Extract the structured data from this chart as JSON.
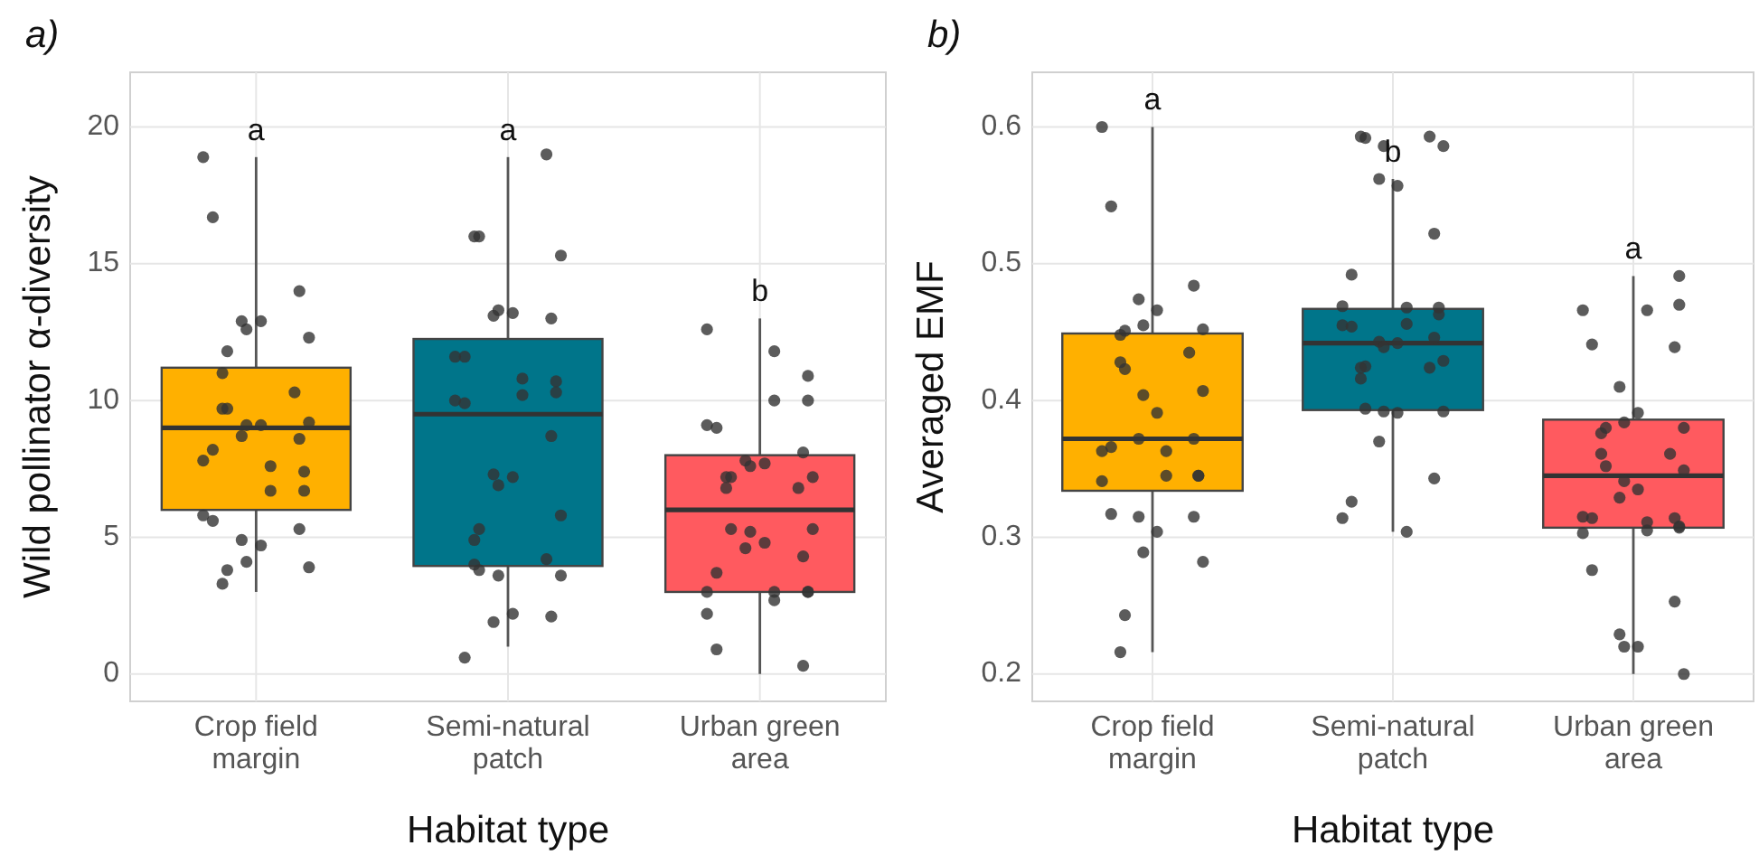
{
  "chart_data": [
    {
      "type": "box",
      "title": "a)",
      "xlabel": "Habitat type",
      "ylabel": "Wild pollinator α-diversity",
      "categories": [
        "Crop field\nmargin",
        "Semi-natural\npatch",
        "Urban green\narea"
      ],
      "colors": [
        "#ffb000",
        "#00758a",
        "#ff5a5f"
      ],
      "boxes": [
        {
          "low": 3.0,
          "q1": 6.0,
          "median": 9.0,
          "q3": 11.2,
          "high": 18.9
        },
        {
          "low": 1.0,
          "q1": 3.95,
          "median": 9.5,
          "q3": 12.25,
          "high": 18.9
        },
        {
          "low": 0,
          "q1": 3.0,
          "median": 6.0,
          "q3": 8.0,
          "high": 13.0
        }
      ],
      "series": [
        {
          "type": "scatter",
          "color": "#333333",
          "x": [
            "Crop field\nmargin",
            "Crop field\nmargin",
            "Crop field\nmargin",
            "Crop field\nmargin",
            "Crop field\nmargin",
            "Crop field\nmargin",
            "Crop field\nmargin",
            "Crop field\nmargin",
            "Crop field\nmargin",
            "Crop field\nmargin",
            "Crop field\nmargin",
            "Crop field\nmargin",
            "Crop field\nmargin",
            "Crop field\nmargin",
            "Crop field\nmargin",
            "Crop field\nmargin",
            "Crop field\nmargin",
            "Crop field\nmargin",
            "Crop field\nmargin",
            "Crop field\nmargin",
            "Crop field\nmargin",
            "Crop field\nmargin",
            "Crop field\nmargin",
            "Crop field\nmargin",
            "Crop field\nmargin",
            "Crop field\nmargin",
            "Crop field\nmargin",
            "Crop field\nmargin",
            "Crop field\nmargin",
            "Crop field\nmargin",
            "Crop field\nmargin",
            "Crop field\nmargin",
            "Semi-natural\npatch",
            "Semi-natural\npatch",
            "Semi-natural\npatch",
            "Semi-natural\npatch",
            "Semi-natural\npatch",
            "Semi-natural\npatch",
            "Semi-natural\npatch",
            "Semi-natural\npatch",
            "Semi-natural\npatch",
            "Semi-natural\npatch",
            "Semi-natural\npatch",
            "Semi-natural\npatch",
            "Semi-natural\npatch",
            "Semi-natural\npatch",
            "Semi-natural\npatch",
            "Semi-natural\npatch",
            "Semi-natural\npatch",
            "Semi-natural\npatch",
            "Semi-natural\npatch",
            "Semi-natural\npatch",
            "Semi-natural\npatch",
            "Semi-natural\npatch",
            "Semi-natural\npatch",
            "Semi-natural\npatch",
            "Semi-natural\npatch",
            "Semi-natural\npatch",
            "Semi-natural\npatch",
            "Semi-natural\npatch",
            "Semi-natural\npatch",
            "Semi-natural\npatch",
            "Semi-natural\npatch",
            "Semi-natural\npatch",
            "Urban green\narea",
            "Urban green\narea",
            "Urban green\narea",
            "Urban green\narea",
            "Urban green\narea",
            "Urban green\narea",
            "Urban green\narea",
            "Urban green\narea",
            "Urban green\narea",
            "Urban green\narea",
            "Urban green\narea",
            "Urban green\narea",
            "Urban green\narea",
            "Urban green\narea",
            "Urban green\narea",
            "Urban green\narea",
            "Urban green\narea",
            "Urban green\narea",
            "Urban green\narea",
            "Urban green\narea",
            "Urban green\narea",
            "Urban green\narea",
            "Urban green\narea",
            "Urban green\narea",
            "Urban green\narea",
            "Urban green\narea",
            "Urban green\narea",
            "Urban green\narea",
            "Urban green\narea",
            "Urban green\narea",
            "Urban green\narea"
          ],
          "values": [
            18.9,
            16.7,
            14.0,
            12.9,
            12.9,
            12.6,
            12.3,
            11.8,
            11.0,
            10.3,
            9.7,
            9.7,
            9.2,
            9.1,
            9.1,
            8.7,
            8.6,
            8.2,
            7.8,
            7.6,
            7.4,
            6.7,
            6.7,
            5.8,
            5.6,
            5.3,
            4.9,
            4.7,
            4.1,
            3.9,
            3.8,
            3.3,
            19.0,
            16.0,
            16.0,
            15.3,
            13.3,
            13.2,
            13.1,
            13.0,
            11.6,
            11.6,
            10.8,
            10.7,
            10.3,
            10.2,
            10.0,
            9.9,
            8.7,
            7.3,
            7.2,
            6.9,
            5.8,
            5.3,
            4.9,
            4.2,
            4.0,
            3.8,
            3.6,
            3.6,
            2.2,
            1.9,
            2.1,
            0.6,
            12.6,
            11.8,
            10.9,
            10.0,
            10.0,
            9.1,
            9.0,
            8.1,
            7.8,
            7.7,
            7.6,
            7.2,
            7.2,
            7.2,
            6.8,
            6.8,
            5.3,
            5.3,
            5.2,
            4.8,
            4.6,
            4.3,
            3.7,
            3.0,
            3.0,
            3.0,
            3.0,
            2.7,
            2.2,
            0.9,
            0.3
          ]
        }
      ],
      "annotations": [
        "a",
        "a",
        "b"
      ],
      "ylim": [
        -1.0,
        22.0
      ],
      "yticks": [
        0,
        5,
        10,
        15,
        20
      ],
      "grid": true
    },
    {
      "type": "box",
      "title": "b)",
      "xlabel": "Habitat type",
      "ylabel": "Averaged EMF",
      "categories": [
        "Crop field\nmargin",
        "Semi-natural\npatch",
        "Urban green\narea"
      ],
      "colors": [
        "#ffb000",
        "#00758a",
        "#ff5a5f"
      ],
      "boxes": [
        {
          "low": 0.216,
          "q1": 0.334,
          "median": 0.372,
          "q3": 0.449,
          "high": 0.6
        },
        {
          "low": 0.304,
          "q1": 0.393,
          "median": 0.442,
          "q3": 0.467,
          "high": 0.562
        },
        {
          "low": 0.2,
          "q1": 0.307,
          "median": 0.345,
          "q3": 0.386,
          "high": 0.491
        }
      ],
      "series": [
        {
          "type": "scatter",
          "color": "#333333",
          "x": [
            "Crop field\nmargin",
            "Crop field\nmargin",
            "Crop field\nmargin",
            "Crop field\nmargin",
            "Crop field\nmargin",
            "Crop field\nmargin",
            "Crop field\nmargin",
            "Crop field\nmargin",
            "Crop field\nmargin",
            "Crop field\nmargin",
            "Crop field\nmargin",
            "Crop field\nmargin",
            "Crop field\nmargin",
            "Crop field\nmargin",
            "Crop field\nmargin",
            "Crop field\nmargin",
            "Crop field\nmargin",
            "Crop field\nmargin",
            "Crop field\nmargin",
            "Crop field\nmargin",
            "Crop field\nmargin",
            "Crop field\nmargin",
            "Crop field\nmargin",
            "Crop field\nmargin",
            "Crop field\nmargin",
            "Crop field\nmargin",
            "Crop field\nmargin",
            "Crop field\nmargin",
            "Crop field\nmargin",
            "Crop field\nmargin",
            "Crop field\nmargin",
            "Crop field\nmargin",
            "Semi-natural\npatch",
            "Semi-natural\npatch",
            "Semi-natural\npatch",
            "Semi-natural\npatch",
            "Semi-natural\npatch",
            "Semi-natural\npatch",
            "Semi-natural\npatch",
            "Semi-natural\npatch",
            "Semi-natural\npatch",
            "Semi-natural\npatch",
            "Semi-natural\npatch",
            "Semi-natural\npatch",
            "Semi-natural\npatch",
            "Semi-natural\npatch",
            "Semi-natural\npatch",
            "Semi-natural\npatch",
            "Semi-natural\npatch",
            "Semi-natural\npatch",
            "Semi-natural\npatch",
            "Semi-natural\npatch",
            "Semi-natural\npatch",
            "Semi-natural\npatch",
            "Semi-natural\npatch",
            "Semi-natural\npatch",
            "Semi-natural\npatch",
            "Semi-natural\npatch",
            "Semi-natural\npatch",
            "Semi-natural\npatch",
            "Semi-natural\npatch",
            "Semi-natural\npatch",
            "Semi-natural\npatch",
            "Semi-natural\npatch",
            "Semi-natural\npatch",
            "Semi-natural\npatch",
            "Urban green\narea",
            "Urban green\narea",
            "Urban green\narea",
            "Urban green\narea",
            "Urban green\narea",
            "Urban green\narea",
            "Urban green\narea",
            "Urban green\narea",
            "Urban green\narea",
            "Urban green\narea",
            "Urban green\narea",
            "Urban green\narea",
            "Urban green\narea",
            "Urban green\narea",
            "Urban green\narea",
            "Urban green\narea",
            "Urban green\narea",
            "Urban green\narea",
            "Urban green\narea",
            "Urban green\narea",
            "Urban green\narea",
            "Urban green\narea",
            "Urban green\narea",
            "Urban green\narea",
            "Urban green\narea",
            "Urban green\narea",
            "Urban green\narea",
            "Urban green\narea",
            "Urban green\narea",
            "Urban green\narea",
            "Urban green\narea",
            "Urban green\narea",
            "Urban green\narea"
          ],
          "values": [
            0.6,
            0.542,
            0.484,
            0.474,
            0.466,
            0.455,
            0.452,
            0.451,
            0.448,
            0.435,
            0.428,
            0.423,
            0.407,
            0.404,
            0.391,
            0.372,
            0.372,
            0.366,
            0.363,
            0.363,
            0.345,
            0.345,
            0.345,
            0.341,
            0.317,
            0.315,
            0.315,
            0.304,
            0.289,
            0.282,
            0.243,
            0.216,
            0.593,
            0.593,
            0.592,
            0.586,
            0.586,
            0.557,
            0.562,
            0.522,
            0.492,
            0.469,
            0.468,
            0.468,
            0.463,
            0.456,
            0.455,
            0.454,
            0.446,
            0.443,
            0.442,
            0.439,
            0.429,
            0.425,
            0.424,
            0.424,
            0.416,
            0.394,
            0.392,
            0.392,
            0.391,
            0.37,
            0.343,
            0.326,
            0.314,
            0.304,
            0.491,
            0.47,
            0.466,
            0.466,
            0.441,
            0.439,
            0.41,
            0.391,
            0.384,
            0.38,
            0.38,
            0.376,
            0.361,
            0.361,
            0.352,
            0.349,
            0.341,
            0.335,
            0.329,
            0.314,
            0.314,
            0.315,
            0.311,
            0.308,
            0.307,
            0.305,
            0.303,
            0.276,
            0.253,
            0.229,
            0.22,
            0.22,
            0.2
          ]
        }
      ],
      "annotations": [
        "a",
        "b",
        "a"
      ],
      "ylim": [
        0.18,
        0.64
      ],
      "yticks": [
        {
          "value": 0.2,
          "label": "0.2"
        },
        {
          "value": 0.3,
          "label": "0.3"
        },
        {
          "value": 0.4,
          "label": "0.4"
        },
        {
          "value": 0.5,
          "label": "0.5"
        },
        {
          "value": 0.6,
          "label": "0.6"
        }
      ],
      "grid": true
    }
  ]
}
